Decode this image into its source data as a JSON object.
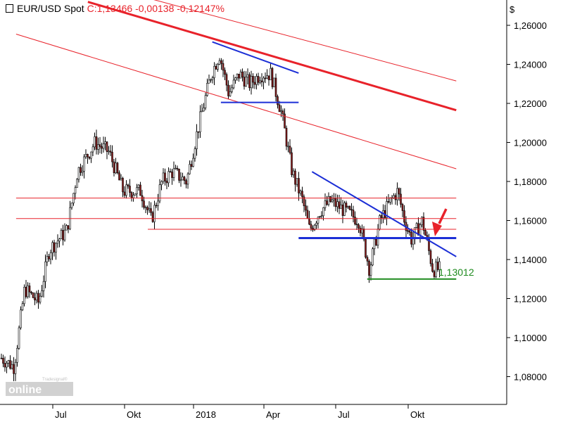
{
  "header": {
    "symbol": "EUR/USD Spot",
    "quote": "C:1,13466 -0,00138 -0,12147%"
  },
  "logo": {
    "brand": "online",
    "sub": "Tradesignal®"
  },
  "colors": {
    "background": "#ffffff",
    "axis": "#000000",
    "candle_up": "#ffffff",
    "candle_down": "#8b1a1a",
    "trend_red": "#e8222a",
    "trend_blue": "#1c2fd6",
    "support_green": "#1e8a1e",
    "arrow": "#e8222a",
    "header_change": "#e8222a"
  },
  "chart_data": {
    "type": "candlestick",
    "currency_label": "$",
    "x_ticks": [
      "Jul",
      "Okt",
      "2018",
      "Apr",
      "Jul",
      "Okt"
    ],
    "y_ticks": [
      "1,26000",
      "1,24000",
      "1,22000",
      "1,20000",
      "1,18000",
      "1,16000",
      "1,14000",
      "1,12000",
      "1,10000",
      "1,08000"
    ],
    "ylim": [
      1.075,
      1.27
    ],
    "price_path": [
      [
        0,
        1.09
      ],
      [
        20,
        1.085
      ],
      [
        35,
        1.125
      ],
      [
        55,
        1.118
      ],
      [
        70,
        1.145
      ],
      [
        95,
        1.155
      ],
      [
        110,
        1.185
      ],
      [
        135,
        1.2
      ],
      [
        155,
        1.195
      ],
      [
        175,
        1.175
      ],
      [
        200,
        1.175
      ],
      [
        215,
        1.16
      ],
      [
        230,
        1.18
      ],
      [
        245,
        1.185
      ],
      [
        265,
        1.18
      ],
      [
        280,
        1.205
      ],
      [
        300,
        1.235
      ],
      [
        312,
        1.245
      ],
      [
        325,
        1.225
      ],
      [
        340,
        1.235
      ],
      [
        355,
        1.23
      ],
      [
        370,
        1.235
      ],
      [
        385,
        1.235
      ],
      [
        400,
        1.215
      ],
      [
        415,
        1.185
      ],
      [
        430,
        1.17
      ],
      [
        440,
        1.155
      ],
      [
        455,
        1.165
      ],
      [
        470,
        1.17
      ],
      [
        490,
        1.165
      ],
      [
        510,
        1.16
      ],
      [
        525,
        1.135
      ],
      [
        540,
        1.16
      ],
      [
        555,
        1.17
      ],
      [
        565,
        1.175
      ],
      [
        575,
        1.16
      ],
      [
        585,
        1.15
      ],
      [
        600,
        1.16
      ],
      [
        615,
        1.135
      ],
      [
        625,
        1.135
      ]
    ],
    "last_low_label": "1,13012",
    "lines": [
      {
        "name": "red-long-downtrend-thick",
        "color": "#e8222a",
        "width": 3,
        "from": [
          "2017-08-15",
          1.272
        ],
        "to": [
          "2018-12-01",
          1.2165
        ]
      },
      {
        "name": "red-channel-upper",
        "color": "#e8222a",
        "width": 1,
        "from": [
          "2017-07-20",
          1.285
        ],
        "to": [
          "2018-12-01",
          1.2315
        ]
      },
      {
        "name": "red-channel-lower",
        "color": "#e8222a",
        "width": 1,
        "from": [
          "2017-05-15",
          1.2555
        ],
        "to": [
          "2018-12-01",
          1.1865
        ]
      },
      {
        "name": "red-horizontal-1",
        "color": "#e8222a",
        "width": 1,
        "from": [
          "2017-05-15",
          1.1715
        ],
        "to": [
          "2018-12-01",
          1.1715
        ]
      },
      {
        "name": "red-horizontal-2",
        "color": "#e8222a",
        "width": 1,
        "from": [
          "2017-05-15",
          1.161
        ],
        "to": [
          "2018-12-01",
          1.161
        ]
      },
      {
        "name": "red-horizontal-3",
        "color": "#e8222a",
        "width": 1,
        "from": [
          "2017-11-01",
          1.1555
        ],
        "to": [
          "2018-12-01",
          1.1555
        ]
      },
      {
        "name": "blue-top-triangle-upper",
        "color": "#1c2fd6",
        "width": 2,
        "from": [
          "2018-01-25",
          1.2515
        ],
        "to": [
          "2018-05-15",
          1.2355
        ]
      },
      {
        "name": "blue-top-triangle-lower",
        "color": "#1c2fd6",
        "width": 2,
        "from": [
          "2018-02-05",
          1.2205
        ],
        "to": [
          "2018-05-15",
          1.2205
        ]
      },
      {
        "name": "blue-descending-resistance",
        "color": "#1c2fd6",
        "width": 2,
        "from": [
          "2018-06-01",
          1.185
        ],
        "to": [
          "2018-12-01",
          1.1415
        ]
      },
      {
        "name": "blue-horizontal-support",
        "color": "#1c2fd6",
        "width": 3,
        "from": [
          "2018-05-15",
          1.151
        ],
        "to": [
          "2018-12-01",
          1.151
        ]
      },
      {
        "name": "green-support-low",
        "color": "#1e8a1e",
        "width": 2,
        "from": [
          "2018-08-10",
          1.13
        ],
        "to": [
          "2018-12-01",
          1.13
        ]
      }
    ]
  }
}
